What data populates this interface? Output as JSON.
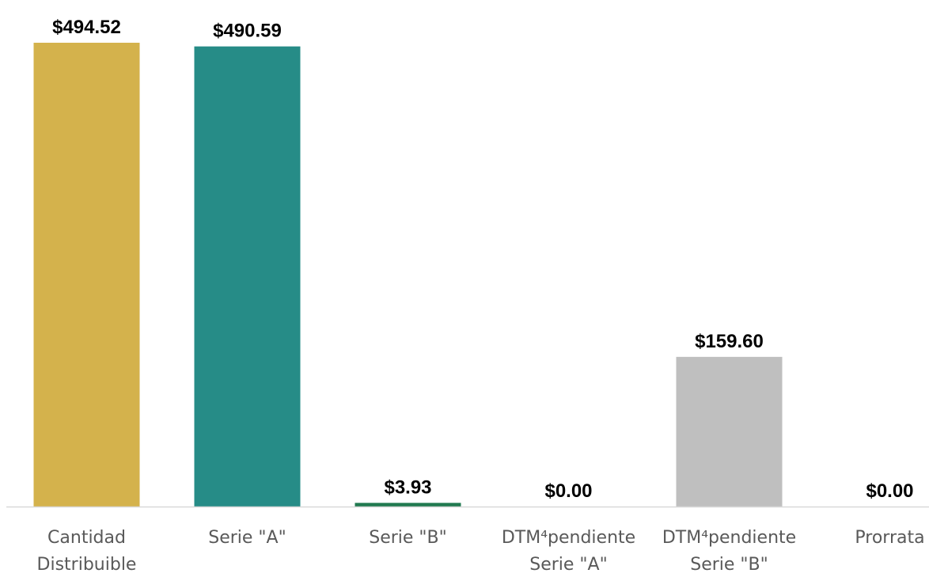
{
  "chart_data": {
    "type": "bar",
    "categories": [
      "Cantidad\nDistribuible",
      "Serie \"A\"",
      "Serie \"B\"",
      "DTM⁴pendiente\nSerie \"A\"",
      "DTM⁴pendiente\nSerie \"B\"",
      "Prorrata"
    ],
    "values": [
      494.52,
      490.59,
      3.93,
      0,
      159.6,
      0
    ],
    "value_labels": [
      "$494.52",
      "$490.59",
      "$3.93",
      "$0.00",
      "$159.60",
      "$0.00"
    ],
    "colors": [
      "#D4B24C",
      "#268C87",
      "#217A50",
      "#BFBFBF",
      "#BFBFBF",
      "#BFBFBF"
    ],
    "ylim": [
      0,
      500
    ]
  }
}
